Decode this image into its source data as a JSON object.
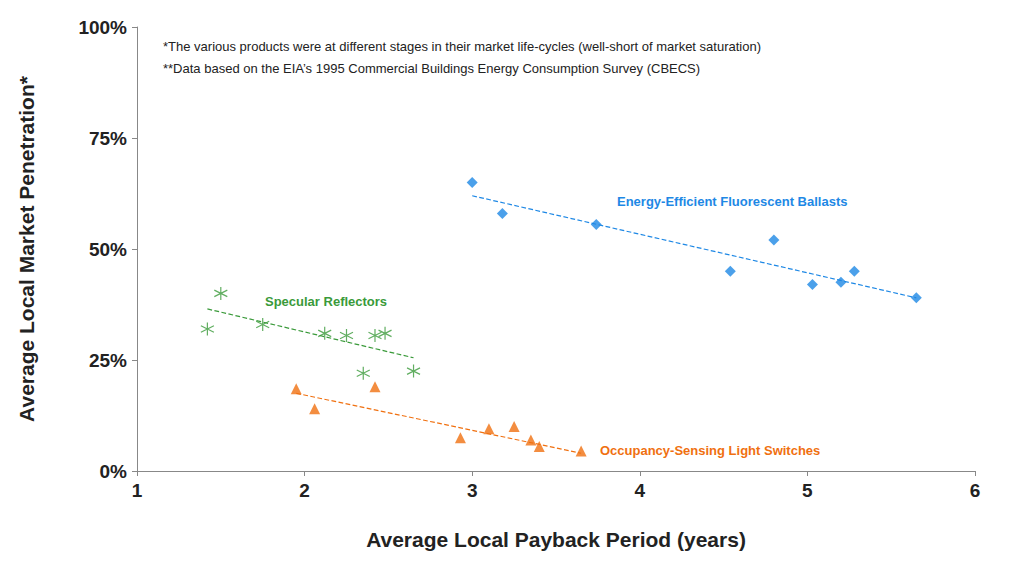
{
  "chart_data": {
    "type": "scatter",
    "x_label": "Average Local Payback Period (years)",
    "y_label": "Average Local Market Penetration*",
    "annotations": [
      "*The various products were at different stages in their market life-cycles (well-short of market saturation)",
      "**Data based on the EIA’s 1995 Commercial Buildings Energy Consumption Survey (CBECS)"
    ],
    "xlim": [
      1,
      6
    ],
    "xticks": [
      1,
      2,
      3,
      4,
      5,
      6
    ],
    "ylim": [
      0,
      100
    ],
    "yticks": [
      {
        "value": 0,
        "label": "0%"
      },
      {
        "value": 25,
        "label": "25%"
      },
      {
        "value": 50,
        "label": "50%"
      },
      {
        "value": 75,
        "label": "75%"
      },
      {
        "value": 100,
        "label": "100%"
      }
    ],
    "grid": false,
    "series": [
      {
        "name": "Energy-Efficient Fluorescent Ballasts",
        "color": "#1e88e5",
        "marker": "diamond",
        "x": [
          3.0,
          3.18,
          3.74,
          4.54,
          4.8,
          5.03,
          5.2,
          5.28,
          5.65
        ],
        "values": [
          65,
          58,
          55.5,
          45,
          52,
          42,
          42.5,
          45,
          39
        ],
        "trend": {
          "x": [
            3.0,
            5.65
          ],
          "y": [
            62,
            39
          ]
        }
      },
      {
        "name": "Specular Reflectors",
        "color": "#3a9a3a",
        "marker": "asterisk",
        "x": [
          1.42,
          1.5,
          1.75,
          2.12,
          2.25,
          2.42,
          2.48,
          2.35,
          2.65
        ],
        "values": [
          32,
          40,
          33,
          31,
          30.5,
          30.5,
          31,
          22,
          22.5
        ],
        "trend": {
          "x": [
            1.42,
            2.65
          ],
          "y": [
            36.5,
            25.5
          ]
        }
      },
      {
        "name": "Occupancy-Sensing Light Switches",
        "color": "#f07010",
        "marker": "triangle",
        "x": [
          1.95,
          2.06,
          2.42,
          2.93,
          3.1,
          3.25,
          3.35,
          3.4,
          3.65
        ],
        "values": [
          18.5,
          14,
          19,
          7.5,
          9.5,
          10,
          7,
          5.5,
          4.5
        ],
        "trend": {
          "x": [
            1.95,
            3.65
          ],
          "y": [
            17.5,
            4
          ]
        }
      }
    ]
  }
}
